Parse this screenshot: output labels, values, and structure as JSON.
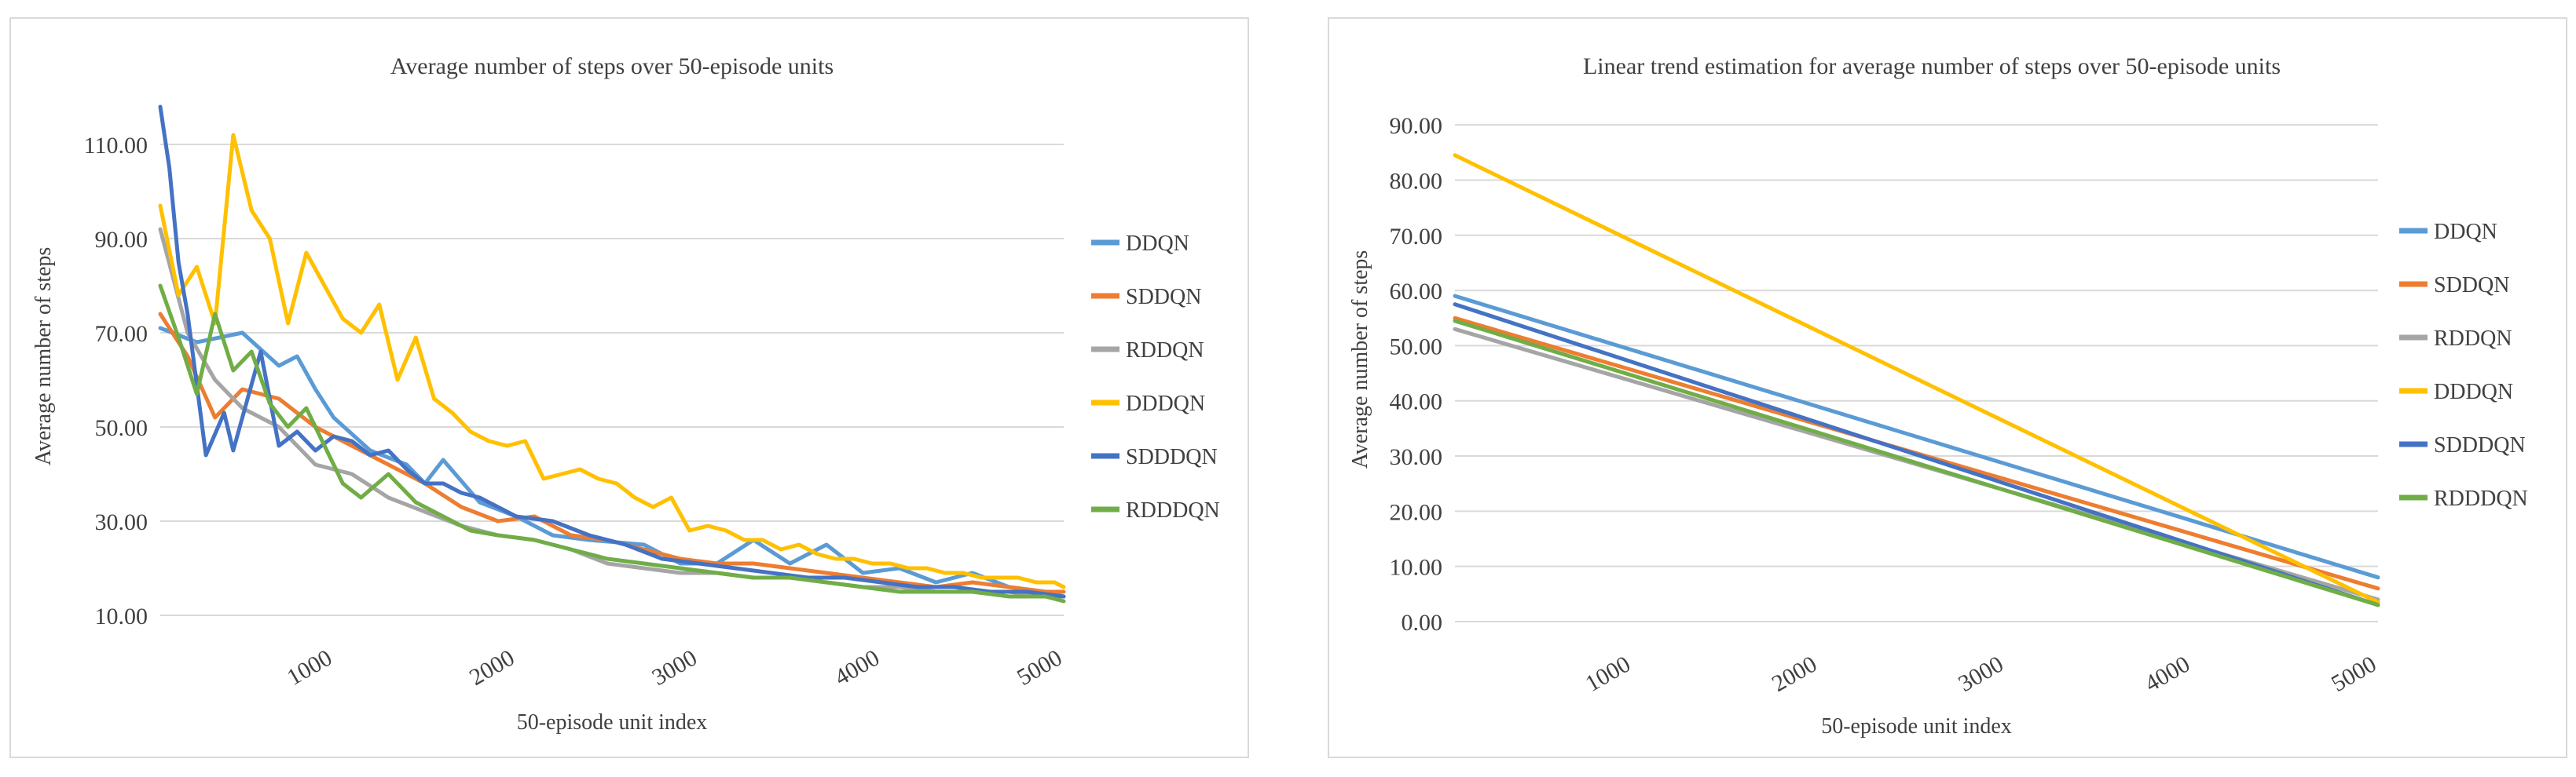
{
  "chart_data": [
    {
      "type": "line",
      "title": "Average number of steps over 50-episode units",
      "xlabel": "50-episode unit index",
      "ylabel": "Average number of steps",
      "x_ticks": [
        "1000",
        "2000",
        "3000",
        "4000",
        "5000"
      ],
      "y_ticks": [
        "10.00",
        "30.00",
        "50.00",
        "70.00",
        "90.00",
        "110.00"
      ],
      "xlim": [
        50,
        5000
      ],
      "ylim": [
        10,
        120
      ],
      "grid": true,
      "legend": "right",
      "series": [
        {
          "name": "DDQN",
          "color": "#5b9bd5",
          "x": [
            50,
            250,
            500,
            700,
            800,
            900,
            1000,
            1200,
            1400,
            1500,
            1600,
            1800,
            2000,
            2200,
            2400,
            2700,
            2900,
            3100,
            3300,
            3500,
            3700,
            3900,
            4100,
            4300,
            4500,
            4700,
            4900,
            5000
          ],
          "y": [
            71,
            68,
            70,
            63,
            65,
            58,
            52,
            45,
            42,
            38,
            43,
            34,
            31,
            27,
            26,
            25,
            21,
            21,
            26,
            21,
            25,
            19,
            20,
            17,
            19,
            16,
            15,
            14
          ]
        },
        {
          "name": "SDDQN",
          "color": "#ed7d31",
          "x": [
            50,
            200,
            350,
            500,
            700,
            900,
            1100,
            1300,
            1500,
            1700,
            1900,
            2100,
            2300,
            2500,
            2700,
            2900,
            3100,
            3300,
            3500,
            3700,
            3900,
            4100,
            4300,
            4500,
            4700,
            4900,
            5000
          ],
          "y": [
            74,
            65,
            52,
            58,
            56,
            50,
            46,
            42,
            38,
            33,
            30,
            31,
            27,
            26,
            24,
            22,
            21,
            21,
            20,
            19,
            18,
            17,
            16,
            17,
            16,
            15,
            15
          ]
        },
        {
          "name": "RDDQN",
          "color": "#a5a5a5",
          "x": [
            50,
            200,
            350,
            500,
            700,
            900,
            1100,
            1300,
            1500,
            1700,
            1900,
            2100,
            2300,
            2500,
            2700,
            2900,
            3100,
            3300,
            3500,
            3700,
            3900,
            4100,
            4300,
            4500,
            4700,
            4900,
            5000
          ],
          "y": [
            92,
            70,
            60,
            54,
            50,
            42,
            40,
            35,
            32,
            29,
            27,
            26,
            24,
            21,
            20,
            19,
            19,
            18,
            18,
            17,
            16,
            16,
            15,
            15,
            15,
            14,
            14
          ]
        },
        {
          "name": "DDDQN",
          "color": "#ffc000",
          "x": [
            50,
            150,
            250,
            350,
            450,
            550,
            650,
            750,
            850,
            950,
            1050,
            1150,
            1250,
            1350,
            1450,
            1550,
            1650,
            1750,
            1850,
            1950,
            2050,
            2150,
            2250,
            2350,
            2450,
            2550,
            2650,
            2750,
            2850,
            2950,
            3050,
            3150,
            3250,
            3350,
            3450,
            3550,
            3650,
            3750,
            3850,
            3950,
            4050,
            4150,
            4250,
            4350,
            4450,
            4550,
            4650,
            4750,
            4850,
            4950,
            5000
          ],
          "y": [
            97,
            78,
            84,
            72,
            112,
            96,
            90,
            72,
            87,
            80,
            73,
            70,
            76,
            60,
            69,
            56,
            53,
            49,
            47,
            46,
            47,
            39,
            40,
            41,
            39,
            38,
            35,
            33,
            35,
            28,
            29,
            28,
            26,
            26,
            24,
            25,
            23,
            22,
            22,
            21,
            21,
            20,
            20,
            19,
            19,
            18,
            18,
            18,
            17,
            17,
            16
          ]
        },
        {
          "name": "SDDDQN",
          "color": "#4472c4",
          "x": [
            50,
            100,
            150,
            200,
            300,
            400,
            450,
            500,
            600,
            700,
            800,
            900,
            1000,
            1100,
            1200,
            1300,
            1400,
            1500,
            1600,
            1700,
            1800,
            1900,
            2000,
            2200,
            2400,
            2600,
            2800,
            3000,
            3200,
            3400,
            3600,
            3800,
            4000,
            4200,
            4400,
            4600,
            4800,
            5000
          ],
          "y": [
            118,
            105,
            85,
            74,
            44,
            53,
            45,
            52,
            66,
            46,
            49,
            45,
            48,
            47,
            44,
            45,
            41,
            38,
            38,
            36,
            35,
            33,
            31,
            30,
            27,
            25,
            22,
            21,
            20,
            19,
            18,
            18,
            17,
            16,
            16,
            15,
            15,
            14
          ]
        },
        {
          "name": "RDDDQN",
          "color": "#70ad47",
          "x": [
            50,
            150,
            250,
            350,
            450,
            550,
            650,
            750,
            850,
            950,
            1050,
            1150,
            1300,
            1450,
            1600,
            1750,
            1900,
            2100,
            2300,
            2500,
            2700,
            2900,
            3100,
            3300,
            3500,
            3700,
            3900,
            4100,
            4300,
            4500,
            4700,
            4900,
            5000
          ],
          "y": [
            80,
            69,
            57,
            74,
            62,
            66,
            55,
            50,
            54,
            46,
            38,
            35,
            40,
            34,
            31,
            28,
            27,
            26,
            24,
            22,
            21,
            20,
            19,
            18,
            18,
            17,
            16,
            15,
            15,
            15,
            14,
            14,
            13
          ]
        }
      ]
    },
    {
      "type": "line",
      "title": "Linear trend estimation for average number of steps over 50-episode units",
      "xlabel": "50-episode unit index",
      "ylabel": "Average number of steps",
      "x_ticks": [
        "1000",
        "2000",
        "3000",
        "4000",
        "5000"
      ],
      "y_ticks": [
        "0.00",
        "10.00",
        "20.00",
        "30.00",
        "40.00",
        "50.00",
        "60.00",
        "70.00",
        "80.00",
        "90.00"
      ],
      "xlim": [
        50,
        5000
      ],
      "ylim": [
        0,
        95
      ],
      "grid": true,
      "legend": "right",
      "series": [
        {
          "name": "DDQN",
          "color": "#5b9bd5",
          "x": [
            50,
            5000
          ],
          "y": [
            59.0,
            8.0
          ]
        },
        {
          "name": "SDDQN",
          "color": "#ed7d31",
          "x": [
            50,
            5000
          ],
          "y": [
            55.0,
            6.0
          ]
        },
        {
          "name": "RDDQN",
          "color": "#a5a5a5",
          "x": [
            50,
            5000
          ],
          "y": [
            53.0,
            4.0
          ]
        },
        {
          "name": "DDDQN",
          "color": "#ffc000",
          "x": [
            50,
            5000
          ],
          "y": [
            84.5,
            3.5
          ]
        },
        {
          "name": "SDDDQN",
          "color": "#4472c4",
          "x": [
            50,
            5000
          ],
          "y": [
            57.5,
            3.0
          ]
        },
        {
          "name": "RDDDQN",
          "color": "#70ad47",
          "x": [
            50,
            5000
          ],
          "y": [
            54.5,
            3.0
          ]
        }
      ]
    }
  ]
}
